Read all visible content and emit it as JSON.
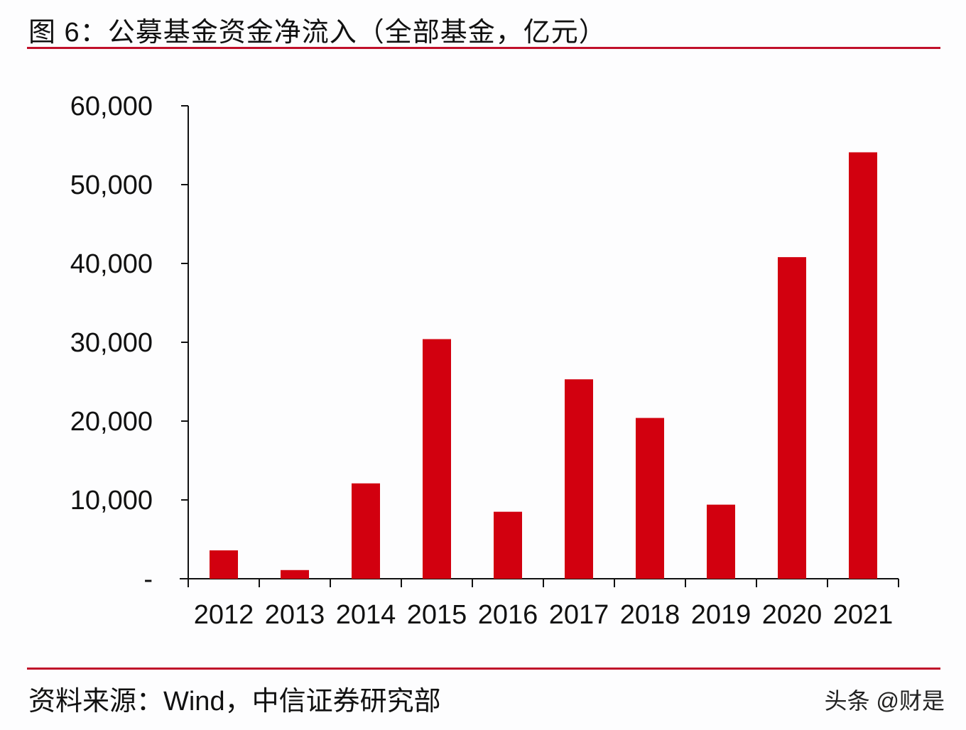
{
  "header": {
    "title": "图 6：公募基金资金净流入（全部基金，亿元）"
  },
  "footer": {
    "source": "资料来源：Wind，中信证券研究部",
    "watermark": "头条 @财是"
  },
  "colors": {
    "bar": "#d2000f",
    "rule": "#c0102a",
    "axis": "#111111"
  },
  "chart_data": {
    "type": "bar",
    "title": "图 6：公募基金资金净流入（全部基金，亿元）",
    "xlabel": "",
    "ylabel": "亿元",
    "categories": [
      "2012",
      "2013",
      "2014",
      "2015",
      "2016",
      "2017",
      "2018",
      "2019",
      "2020",
      "2021"
    ],
    "values": [
      3600,
      1100,
      12100,
      30400,
      8500,
      25300,
      20400,
      9400,
      40800,
      54100
    ],
    "ylim": [
      0,
      60000
    ],
    "yticks": [
      0,
      10000,
      20000,
      30000,
      40000,
      50000,
      60000
    ],
    "ytick_labels": [
      "-",
      "10,000",
      "20,000",
      "30,000",
      "40,000",
      "50,000",
      "60,000"
    ],
    "grid": false,
    "legend": null
  }
}
